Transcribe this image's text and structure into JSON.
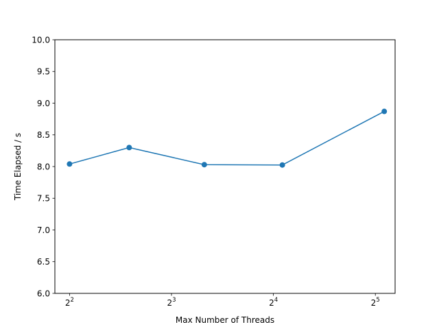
{
  "chart_data": {
    "type": "line",
    "title": "",
    "xlabel": "Max Number of Threads",
    "ylabel": "Time Elapsed / s",
    "xscale": "log2",
    "xlim": [
      3.62,
      36.6
    ],
    "ylim": [
      6.0,
      10.0
    ],
    "grid": false,
    "x_ticks": [
      {
        "value": 4,
        "base": "2",
        "exp": "2"
      },
      {
        "value": 8,
        "base": "2",
        "exp": "3"
      },
      {
        "value": 16,
        "base": "2",
        "exp": "4"
      },
      {
        "value": 32,
        "base": "2",
        "exp": "5"
      }
    ],
    "y_ticks": [
      "6.0",
      "6.5",
      "7.0",
      "7.5",
      "8.0",
      "8.5",
      "9.0",
      "9.5",
      "10.0"
    ],
    "series": [
      {
        "color": "#1f77b4",
        "marker": "circle",
        "x": [
          4,
          6,
          10,
          17,
          34
        ],
        "y": [
          8.04,
          8.3,
          8.03,
          8.025,
          8.87
        ]
      }
    ]
  }
}
